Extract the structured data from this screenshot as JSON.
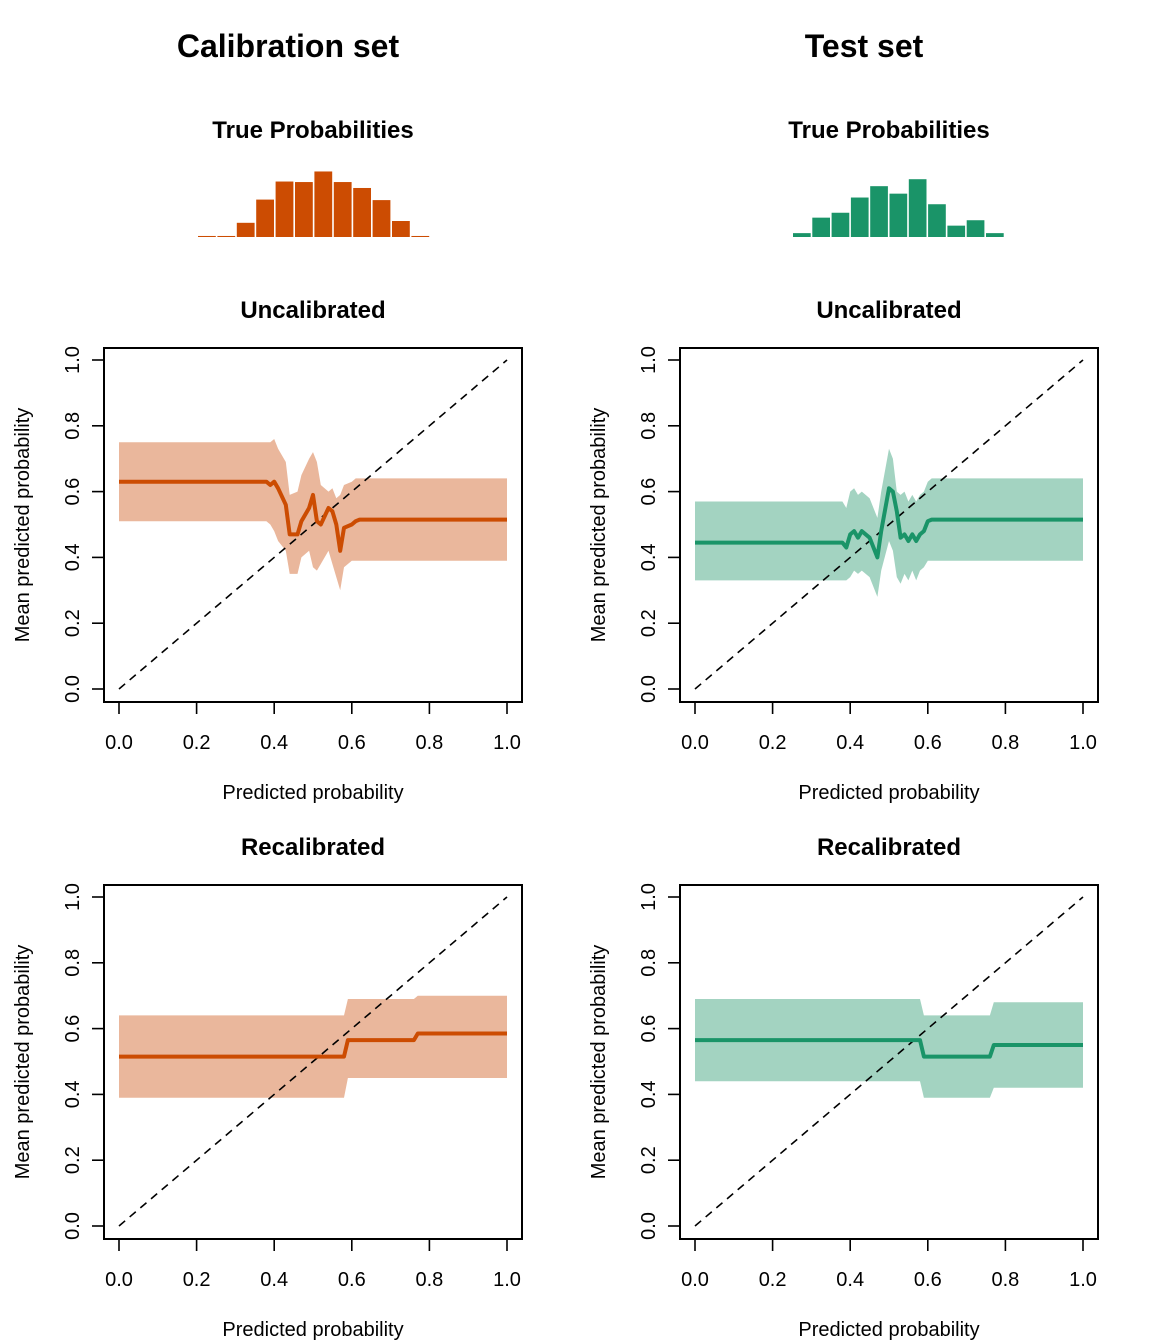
{
  "colors": {
    "calibration": "#cc4c02",
    "calibration_band": "#eab79c",
    "test": "#1a9468",
    "test_band": "#a3d3c1"
  },
  "columns": [
    {
      "title": "Calibration set",
      "color_key": "calibration"
    },
    {
      "title": "Test set",
      "color_key": "test"
    }
  ],
  "chart_data": [
    {
      "type": "bar",
      "column": 0,
      "title": "True Probabilities",
      "values": [
        0.4,
        0.4,
        5.5,
        14.5,
        21.5,
        21.3,
        25.4,
        21.3,
        19,
        14.3,
        6.2,
        0.4
      ]
    },
    {
      "type": "line",
      "column": 0,
      "title": "Uncalibrated",
      "xlabel": "Predicted probability",
      "ylabel": "Mean predicted probability",
      "xlim": [
        0,
        1
      ],
      "ylim": [
        0,
        1
      ],
      "x_ticks": [
        "0.0",
        "0.2",
        "0.4",
        "0.6",
        "0.8",
        "1.0"
      ],
      "y_ticks": [
        "0.0",
        "0.2",
        "0.4",
        "0.6",
        "0.8",
        "1.0"
      ],
      "reference_line": "y = x (dashed)",
      "series": [
        {
          "x": [
            0,
            0.38,
            0.39,
            0.4,
            0.41,
            0.43,
            0.44,
            0.46,
            0.47,
            0.49,
            0.5,
            0.51,
            0.52,
            0.54,
            0.55,
            0.56,
            0.57,
            0.58,
            0.6,
            0.61,
            0.62,
            1.0
          ],
          "y": [
            0.63,
            0.63,
            0.62,
            0.63,
            0.61,
            0.56,
            0.47,
            0.47,
            0.51,
            0.55,
            0.59,
            0.51,
            0.5,
            0.55,
            0.54,
            0.5,
            0.42,
            0.49,
            0.5,
            0.51,
            0.515,
            0.515
          ],
          "lower": [
            0.51,
            0.51,
            0.5,
            0.48,
            0.45,
            0.42,
            0.35,
            0.35,
            0.4,
            0.42,
            0.37,
            0.36,
            0.38,
            0.42,
            0.38,
            0.34,
            0.3,
            0.37,
            0.39,
            0.39,
            0.39,
            0.39
          ],
          "upper": [
            0.75,
            0.75,
            0.75,
            0.76,
            0.73,
            0.69,
            0.59,
            0.6,
            0.65,
            0.7,
            0.72,
            0.69,
            0.62,
            0.6,
            0.61,
            0.58,
            0.59,
            0.62,
            0.63,
            0.64,
            0.64,
            0.64
          ]
        }
      ]
    },
    {
      "type": "line",
      "column": 0,
      "title": "Recalibrated",
      "xlabel": "Predicted probability",
      "ylabel": "Mean predicted probability",
      "xlim": [
        0,
        1
      ],
      "ylim": [
        0,
        1
      ],
      "x_ticks": [
        "0.0",
        "0.2",
        "0.4",
        "0.6",
        "0.8",
        "1.0"
      ],
      "y_ticks": [
        "0.0",
        "0.2",
        "0.4",
        "0.6",
        "0.8",
        "1.0"
      ],
      "reference_line": "y = x (dashed)",
      "series": [
        {
          "x": [
            0,
            0.58,
            0.59,
            0.76,
            0.77,
            1.0
          ],
          "y": [
            0.515,
            0.515,
            0.565,
            0.565,
            0.585,
            0.585
          ],
          "lower": [
            0.39,
            0.39,
            0.45,
            0.45,
            0.45,
            0.45
          ],
          "upper": [
            0.64,
            0.64,
            0.69,
            0.69,
            0.7,
            0.7
          ]
        }
      ]
    },
    {
      "type": "bar",
      "column": 1,
      "title": "True Probabilities",
      "values": [
        1.5,
        7.5,
        9.4,
        15.3,
        19.7,
        16.8,
        22.4,
        12.7,
        4.4,
        6.5,
        1.5
      ]
    },
    {
      "type": "line",
      "column": 1,
      "title": "Uncalibrated",
      "xlabel": "Predicted probability",
      "ylabel": "Mean predicted probability",
      "xlim": [
        0,
        1
      ],
      "ylim": [
        0,
        1
      ],
      "x_ticks": [
        "0.0",
        "0.2",
        "0.4",
        "0.6",
        "0.8",
        "1.0"
      ],
      "y_ticks": [
        "0.0",
        "0.2",
        "0.4",
        "0.6",
        "0.8",
        "1.0"
      ],
      "reference_line": "y = x (dashed)",
      "series": [
        {
          "x": [
            0,
            0.38,
            0.39,
            0.4,
            0.41,
            0.42,
            0.43,
            0.45,
            0.47,
            0.48,
            0.5,
            0.51,
            0.52,
            0.53,
            0.54,
            0.55,
            0.56,
            0.57,
            0.58,
            0.59,
            0.6,
            0.61,
            1.0
          ],
          "y": [
            0.445,
            0.445,
            0.43,
            0.47,
            0.48,
            0.46,
            0.48,
            0.46,
            0.4,
            0.48,
            0.61,
            0.6,
            0.54,
            0.46,
            0.47,
            0.45,
            0.47,
            0.45,
            0.47,
            0.48,
            0.51,
            0.515,
            0.515
          ],
          "lower": [
            0.33,
            0.33,
            0.33,
            0.34,
            0.36,
            0.35,
            0.36,
            0.34,
            0.28,
            0.36,
            0.45,
            0.42,
            0.34,
            0.32,
            0.35,
            0.33,
            0.36,
            0.33,
            0.36,
            0.37,
            0.39,
            0.39,
            0.39
          ],
          "upper": [
            0.57,
            0.57,
            0.55,
            0.6,
            0.61,
            0.59,
            0.6,
            0.58,
            0.52,
            0.6,
            0.73,
            0.7,
            0.6,
            0.59,
            0.6,
            0.57,
            0.59,
            0.57,
            0.59,
            0.6,
            0.63,
            0.64,
            0.64
          ]
        }
      ]
    },
    {
      "type": "line",
      "column": 1,
      "title": "Recalibrated",
      "xlabel": "Predicted probability",
      "ylabel": "Mean predicted probability",
      "xlim": [
        0,
        1
      ],
      "ylim": [
        0,
        1
      ],
      "x_ticks": [
        "0.0",
        "0.2",
        "0.4",
        "0.6",
        "0.8",
        "1.0"
      ],
      "y_ticks": [
        "0.0",
        "0.2",
        "0.4",
        "0.6",
        "0.8",
        "1.0"
      ],
      "reference_line": "y = x (dashed)",
      "series": [
        {
          "x": [
            0,
            0.58,
            0.59,
            0.76,
            0.77,
            1.0
          ],
          "y": [
            0.565,
            0.565,
            0.515,
            0.515,
            0.55,
            0.55
          ],
          "lower": [
            0.44,
            0.44,
            0.39,
            0.39,
            0.42,
            0.42
          ],
          "upper": [
            0.69,
            0.69,
            0.64,
            0.64,
            0.68,
            0.68
          ]
        }
      ]
    }
  ]
}
